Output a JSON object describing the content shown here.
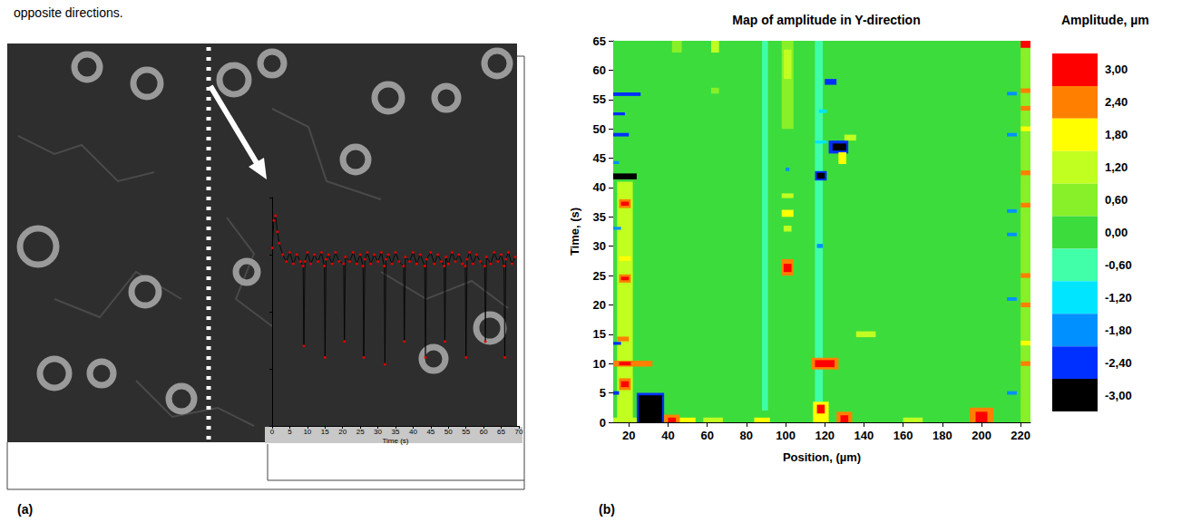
{
  "caption": "opposite directions.",
  "panel_labels": [
    "(a)",
    "(b)"
  ],
  "chart_data": [
    {
      "type": "line",
      "x_label": "Time (s)",
      "xlim": [
        0,
        70
      ],
      "xticks": [
        0,
        5,
        10,
        15,
        20,
        25,
        30,
        35,
        40,
        45,
        50,
        55,
        60,
        65,
        70
      ],
      "ylim": [
        0,
        1
      ],
      "yticks": [
        0,
        0.25,
        0.5,
        0.75,
        1
      ],
      "tick_labels": "x",
      "color": "#000000",
      "marker": "circle",
      "x": [
        0,
        0.5,
        1,
        1.5,
        2,
        3,
        4,
        5,
        6,
        7,
        8,
        8.8,
        9,
        9.3,
        10,
        11,
        12,
        13,
        14,
        14.8,
        15,
        15.3,
        16,
        17,
        18,
        19,
        20.3,
        20.5,
        20.8,
        22,
        23,
        24,
        25,
        25.8,
        26,
        26.3,
        27,
        28,
        29,
        30,
        31,
        31.8,
        32,
        32.3,
        33,
        34,
        35,
        36,
        37.3,
        37.5,
        37.8,
        39,
        40,
        41,
        42,
        43.3,
        43.5,
        43.8,
        45,
        46,
        47,
        48,
        48.8,
        49,
        49.3,
        50,
        51,
        52,
        53,
        54,
        54.8,
        55,
        55.3,
        56,
        57,
        58,
        59,
        60.3,
        60.5,
        60.8,
        62,
        63,
        64,
        65,
        65.8,
        66,
        66.3,
        67,
        68,
        69
      ],
      "values": [
        0.78,
        0.9,
        0.92,
        0.85,
        0.8,
        0.75,
        0.72,
        0.76,
        0.71,
        0.75,
        0.72,
        0.7,
        0.35,
        0.72,
        0.76,
        0.71,
        0.75,
        0.72,
        0.76,
        0.7,
        0.3,
        0.73,
        0.75,
        0.71,
        0.76,
        0.72,
        0.71,
        0.37,
        0.74,
        0.72,
        0.76,
        0.71,
        0.75,
        0.7,
        0.3,
        0.73,
        0.76,
        0.71,
        0.75,
        0.72,
        0.76,
        0.7,
        0.27,
        0.73,
        0.75,
        0.71,
        0.76,
        0.72,
        0.7,
        0.37,
        0.74,
        0.72,
        0.76,
        0.71,
        0.75,
        0.7,
        0.3,
        0.73,
        0.76,
        0.71,
        0.75,
        0.72,
        0.7,
        0.37,
        0.74,
        0.71,
        0.76,
        0.72,
        0.75,
        0.71,
        0.7,
        0.3,
        0.73,
        0.76,
        0.71,
        0.75,
        0.72,
        0.7,
        0.37,
        0.74,
        0.71,
        0.76,
        0.72,
        0.75,
        0.7,
        0.3,
        0.73,
        0.76,
        0.71,
        0.74
      ]
    },
    {
      "type": "heatmap",
      "title": "Map of amplitude in Y-direction",
      "x_label": "Position, (µm)",
      "y_label": "Time, (s)",
      "xlim": [
        12,
        225
      ],
      "xticks": [
        20,
        40,
        60,
        80,
        100,
        120,
        140,
        160,
        180,
        200,
        220
      ],
      "ylim": [
        0,
        65
      ],
      "yticks": [
        0,
        5,
        10,
        15,
        20,
        25,
        30,
        35,
        40,
        45,
        50,
        55,
        60,
        65
      ],
      "colorbar": {
        "title": "Amplitude, µm",
        "range": [
          -3.3,
          3.3
        ],
        "ticks": [
          {
            "value": 3,
            "label": "3,00"
          },
          {
            "value": 2.4,
            "label": "2,40"
          },
          {
            "value": 1.8,
            "label": "1,80"
          },
          {
            "value": 1.2,
            "label": "1,20"
          },
          {
            "value": 0.6,
            "label": "0,60"
          },
          {
            "value": 0,
            "label": "0,00"
          },
          {
            "value": -0.6,
            "label": "-0,60"
          },
          {
            "value": -1.2,
            "label": "-1,20"
          },
          {
            "value": -1.8,
            "label": "-1,80"
          },
          {
            "value": -2.4,
            "label": "-2,40"
          },
          {
            "value": -3,
            "label": "-3,00"
          }
        ],
        "colors": [
          "#ff0000",
          "#ff8000",
          "#ffff00",
          "#c0ff20",
          "#88f028",
          "#3ddc3d",
          "#40ffa8",
          "#00e5ff",
          "#0090ff",
          "#0030ff",
          "#000000"
        ]
      },
      "cells": [
        [
          12,
          225,
          0,
          65,
          0.1
        ],
        [
          220,
          225,
          0,
          65,
          0.5
        ],
        [
          88,
          91,
          2,
          65,
          -0.4
        ],
        [
          115,
          119,
          3,
          65,
          -0.4
        ],
        [
          14,
          22,
          0.5,
          41,
          0.9
        ],
        [
          15,
          21,
          5.5,
          7.5,
          2.4
        ],
        [
          16,
          20,
          6,
          7,
          3
        ],
        [
          12,
          32,
          9.5,
          10.5,
          2.4
        ],
        [
          15,
          21,
          9.7,
          10.3,
          3
        ],
        [
          14,
          20,
          13.8,
          14.6,
          2.4
        ],
        [
          15,
          21,
          23.8,
          25.2,
          2.4
        ],
        [
          16,
          20,
          24.2,
          24.8,
          3
        ],
        [
          15,
          21,
          27.5,
          28.3,
          1.8
        ],
        [
          15,
          21,
          36.5,
          38,
          2.4
        ],
        [
          16,
          20,
          36.9,
          37.6,
          3
        ],
        [
          12,
          24,
          41.4,
          42.4,
          -3
        ],
        [
          12,
          15,
          4.7,
          5.3,
          -2.4
        ],
        [
          12,
          16,
          13.2,
          13.7,
          -2.4
        ],
        [
          12,
          16,
          32.8,
          33.3,
          -1.8
        ],
        [
          12,
          15,
          44,
          44.5,
          -1.8
        ],
        [
          12,
          20,
          48.7,
          49.3,
          -2.4
        ],
        [
          12,
          18,
          52.3,
          52.8,
          -2.4
        ],
        [
          12,
          26,
          55.6,
          56.2,
          -2.4
        ],
        [
          24,
          38,
          0,
          5,
          -2.4
        ],
        [
          25,
          37,
          0,
          4.6,
          -3
        ],
        [
          12,
          24,
          0,
          0.8,
          1.2
        ],
        [
          38,
          46,
          0,
          1.3,
          2.4
        ],
        [
          40,
          44,
          0,
          0.8,
          3
        ],
        [
          46,
          54,
          0,
          0.8,
          1.8
        ],
        [
          58,
          68,
          0,
          0.8,
          1.2
        ],
        [
          84,
          92,
          0,
          0.8,
          1.8
        ],
        [
          114,
          122,
          0,
          3.5,
          1.8
        ],
        [
          116,
          120,
          1.5,
          3,
          3
        ],
        [
          126,
          134,
          0,
          1.8,
          2.4
        ],
        [
          128,
          132,
          0,
          1.2,
          3
        ],
        [
          160,
          170,
          0,
          0.8,
          1.2
        ],
        [
          194,
          206,
          0,
          2.5,
          2.4
        ],
        [
          197,
          203,
          0,
          1.8,
          3
        ],
        [
          98,
          104,
          50,
          65,
          0.8
        ],
        [
          99,
          103,
          58.5,
          63.5,
          1.2
        ],
        [
          98,
          104,
          25,
          27.8,
          2.4
        ],
        [
          99,
          103,
          25.6,
          27,
          3
        ],
        [
          99,
          103,
          32.5,
          33.5,
          1.2
        ],
        [
          98,
          104,
          35,
          36.2,
          1.8
        ],
        [
          98,
          104,
          38.2,
          39,
          1.2
        ],
        [
          100,
          102,
          42.8,
          43.4,
          -1.8
        ],
        [
          113,
          127,
          9,
          11,
          2.4
        ],
        [
          115,
          125,
          9.4,
          10.6,
          3
        ],
        [
          115,
          121,
          41.2,
          42.8,
          -2.4
        ],
        [
          116,
          120,
          41.5,
          42.5,
          -3
        ],
        [
          116,
          119,
          29.7,
          30.4,
          -1.8
        ],
        [
          122,
          132,
          45.8,
          48,
          -2.4
        ],
        [
          124,
          131,
          46.3,
          47.5,
          -3
        ],
        [
          120,
          126,
          57.5,
          58.5,
          -2.4
        ],
        [
          117,
          121,
          52.7,
          53.3,
          -1.2
        ],
        [
          115,
          121,
          47.5,
          48,
          -1.2
        ],
        [
          127,
          131,
          44,
          46,
          1.8
        ],
        [
          136,
          146,
          14.5,
          15.5,
          1.2
        ],
        [
          130,
          136,
          48,
          49,
          1.2
        ],
        [
          62,
          66,
          63,
          65,
          1.2
        ],
        [
          42,
          47,
          63,
          65,
          0.8
        ],
        [
          62,
          66,
          56,
          57,
          0.8
        ],
        [
          220,
          225,
          9.6,
          10.4,
          2.4
        ],
        [
          220,
          225,
          13.1,
          13.9,
          1.8
        ],
        [
          220,
          225,
          19.6,
          20.4,
          2.4
        ],
        [
          220,
          225,
          24.6,
          25.4,
          2.4
        ],
        [
          220,
          225,
          36.6,
          37.4,
          2.4
        ],
        [
          220,
          225,
          42.1,
          42.9,
          2.4
        ],
        [
          220,
          225,
          49.6,
          50.4,
          1.8
        ],
        [
          220,
          225,
          53.1,
          53.9,
          2.4
        ],
        [
          220,
          225,
          56.1,
          56.9,
          2.4
        ],
        [
          220,
          225,
          63.8,
          65,
          3
        ],
        [
          213,
          218,
          4.7,
          5.3,
          -1.8
        ],
        [
          213,
          218,
          20.7,
          21.3,
          -1.8
        ],
        [
          213,
          218,
          31.7,
          32.3,
          -1.8
        ],
        [
          213,
          218,
          35.7,
          36.3,
          -1.8
        ],
        [
          213,
          218,
          48.7,
          49.3,
          -1.8
        ],
        [
          213,
          218,
          55.7,
          56.3,
          -1.8
        ]
      ]
    }
  ]
}
